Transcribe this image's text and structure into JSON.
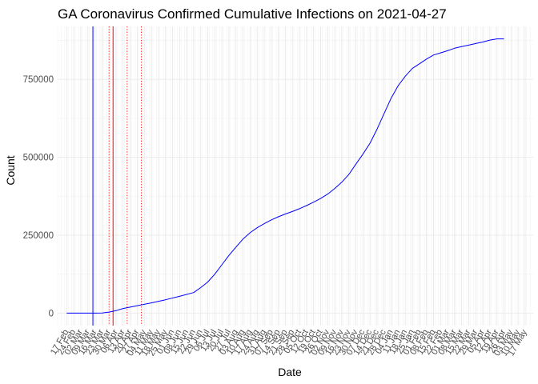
{
  "chart_data": {
    "type": "line",
    "title": "GA Coronavirus Confirmed Cumulative Infections on 2021-04-27",
    "xlabel": "Date",
    "ylabel": "Count",
    "x_range": [
      "2020-02-08",
      "2021-05-25"
    ],
    "ylim": [
      -40000,
      920000
    ],
    "y_ticks": [
      0,
      250000,
      500000,
      750000
    ],
    "y_tick_labels": [
      "0",
      "250000",
      "500000",
      "750000"
    ],
    "grid": true,
    "x_ticks": [
      "2020-02-17",
      "2020-02-24",
      "2020-03-02",
      "2020-03-09",
      "2020-03-16",
      "2020-03-23",
      "2020-03-30",
      "2020-04-06",
      "2020-04-13",
      "2020-04-20",
      "2020-04-27",
      "2020-05-04",
      "2020-05-11",
      "2020-05-18",
      "2020-05-25",
      "2020-06-01",
      "2020-06-08",
      "2020-06-15",
      "2020-06-22",
      "2020-06-29",
      "2020-07-06",
      "2020-07-13",
      "2020-07-20",
      "2020-07-27",
      "2020-08-03",
      "2020-08-10",
      "2020-08-17",
      "2020-08-24",
      "2020-08-31",
      "2020-09-07",
      "2020-09-14",
      "2020-09-21",
      "2020-09-28",
      "2020-10-05",
      "2020-10-12",
      "2020-10-19",
      "2020-10-26",
      "2020-11-02",
      "2020-11-09",
      "2020-11-16",
      "2020-11-23",
      "2020-11-30",
      "2020-12-07",
      "2020-12-14",
      "2020-12-21",
      "2020-12-28",
      "2021-01-04",
      "2021-01-11",
      "2021-01-18",
      "2021-01-25",
      "2021-02-01",
      "2021-02-08",
      "2021-02-15",
      "2021-02-22",
      "2021-03-01",
      "2021-03-08",
      "2021-03-15",
      "2021-03-22",
      "2021-03-29",
      "2021-04-05",
      "2021-04-12",
      "2021-04-19",
      "2021-04-26",
      "2021-05-03",
      "2021-05-10",
      "2021-05-17"
    ],
    "x_tick_labels": [
      "17 Feb",
      "24 Feb",
      "02 Mar",
      "09 Mar",
      "16 Mar",
      "23 Mar",
      "30 Mar",
      "06 Apr",
      "13 Apr",
      "20 Apr",
      "27 Apr",
      "04 May",
      "11 May",
      "18 May",
      "25 May",
      "01 Jun",
      "08 Jun",
      "15 Jun",
      "22 Jun",
      "29 Jun",
      "06 Jul",
      "13 Jul",
      "20 Jul",
      "27 Jul",
      "03 Aug",
      "10 Aug",
      "17 Aug",
      "24 Aug",
      "31 Aug",
      "07 Sep",
      "14 Sep",
      "21 Sep",
      "28 Sep",
      "05 Oct",
      "12 Oct",
      "19 Oct",
      "26 Oct",
      "02 Nov",
      "09 Nov",
      "16 Nov",
      "23 Nov",
      "30 Nov",
      "07 Dec",
      "14 Dec",
      "21 Dec",
      "28 Dec",
      "04 Jan",
      "11 Jan",
      "18 Jan",
      "25 Jan",
      "01 Feb",
      "08 Feb",
      "15 Feb",
      "22 Feb",
      "01 Mar",
      "08 Mar",
      "15 Mar",
      "22 Mar",
      "29 Mar",
      "05 Apr",
      "12 Apr",
      "19 Apr",
      "26 Apr",
      "03 May",
      "10 May",
      "17 May"
    ],
    "series": [
      {
        "color": "#0000ff",
        "x": [
          "2020-02-17",
          "2020-03-02",
          "2020-03-16",
          "2020-03-23",
          "2020-03-30",
          "2020-04-06",
          "2020-04-13",
          "2020-04-27",
          "2020-05-11",
          "2020-05-25",
          "2020-06-08",
          "2020-06-22",
          "2020-06-29",
          "2020-07-06",
          "2020-07-13",
          "2020-07-20",
          "2020-07-27",
          "2020-08-03",
          "2020-08-10",
          "2020-08-17",
          "2020-08-24",
          "2020-08-31",
          "2020-09-07",
          "2020-09-14",
          "2020-09-21",
          "2020-09-28",
          "2020-10-05",
          "2020-10-12",
          "2020-10-19",
          "2020-10-26",
          "2020-11-02",
          "2020-11-09",
          "2020-11-16",
          "2020-11-23",
          "2020-11-30",
          "2020-12-07",
          "2020-12-14",
          "2020-12-21",
          "2020-12-28",
          "2021-01-04",
          "2021-01-11",
          "2021-01-18",
          "2021-01-25",
          "2021-02-01",
          "2021-02-08",
          "2021-02-15",
          "2021-02-22",
          "2021-03-01",
          "2021-03-08",
          "2021-03-15",
          "2021-03-22",
          "2021-03-29",
          "2021-04-05",
          "2021-04-12",
          "2021-04-19",
          "2021-04-26"
        ],
        "y": [
          0,
          0,
          0,
          500,
          3500,
          8000,
          15000,
          24000,
          33000,
          43000,
          54000,
          66000,
          82000,
          100000,
          125000,
          155000,
          185000,
          212000,
          238000,
          258000,
          274000,
          287000,
          299000,
          309000,
          318000,
          326000,
          335000,
          345000,
          356000,
          368000,
          382000,
          400000,
          420000,
          445000,
          478000,
          510000,
          545000,
          590000,
          640000,
          690000,
          730000,
          760000,
          785000,
          800000,
          815000,
          828000,
          835000,
          842000,
          850000,
          855000,
          860000,
          865000,
          870000,
          876000,
          880000,
          880000
        ]
      }
    ],
    "vlines": [
      {
        "x": "2020-03-14",
        "color": "#0000ff",
        "style": "solid"
      },
      {
        "x": "2020-03-30",
        "color": "#ff0000",
        "style": "dotted"
      },
      {
        "x": "2020-04-03",
        "color": "#ff0000",
        "style": "solid"
      },
      {
        "x": "2020-04-17",
        "color": "#ff0000",
        "style": "dotted"
      },
      {
        "x": "2020-05-01",
        "color": "#ff0000",
        "style": "dotted"
      }
    ]
  }
}
